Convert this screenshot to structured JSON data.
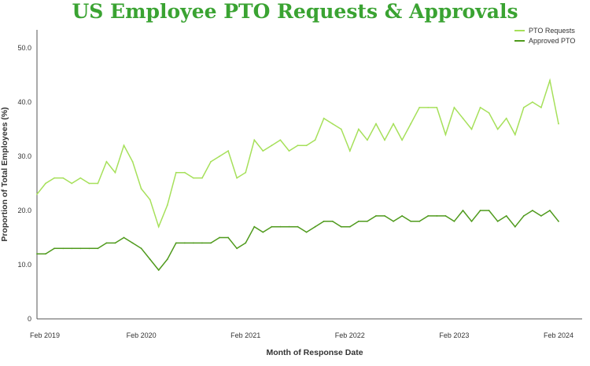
{
  "chart_data": {
    "type": "line",
    "title": "US Employee PTO Requests & Approvals",
    "xlabel": "Month of Response Date",
    "ylabel": "Proportion of Total Employees (%)",
    "ylim": [
      0,
      50
    ],
    "yticks": [
      "0",
      "10.0",
      "20.0",
      "30.0",
      "40.0",
      "50.0"
    ],
    "xticks": [
      {
        "label": "Feb 2019",
        "index": 0
      },
      {
        "label": "Feb 2020",
        "index": 12
      },
      {
        "label": "Feb 2021",
        "index": 24
      },
      {
        "label": "Feb 2022",
        "index": 36
      },
      {
        "label": "Feb 2023",
        "index": 48
      },
      {
        "label": "Feb 2024",
        "index": 60
      }
    ],
    "x_start": "Feb 2019",
    "x_end": "Feb 2024",
    "legend_position": "top-right",
    "grid": false,
    "series": [
      {
        "name": "PTO Requests",
        "color": "#a6e05a",
        "values": [
          23,
          25,
          26,
          26,
          25,
          26,
          25,
          25,
          29,
          27,
          32,
          29,
          24,
          22,
          17,
          21,
          27,
          27,
          26,
          26,
          29,
          30,
          31,
          26,
          27,
          33,
          31,
          32,
          33,
          31,
          32,
          32,
          33,
          37,
          36,
          35,
          31,
          35,
          33,
          36,
          33,
          36,
          33,
          36,
          39,
          39,
          39,
          34,
          39,
          37,
          35,
          39,
          38,
          35,
          37,
          34,
          39,
          40,
          39,
          44,
          36
        ]
      },
      {
        "name": "Approved PTO",
        "color": "#4f9a1c",
        "values": [
          12,
          12,
          13,
          13,
          13,
          13,
          13,
          13,
          14,
          14,
          15,
          14,
          13,
          11,
          9,
          11,
          14,
          14,
          14,
          14,
          14,
          15,
          15,
          13,
          14,
          17,
          16,
          17,
          17,
          17,
          17,
          16,
          17,
          18,
          18,
          17,
          17,
          18,
          18,
          19,
          19,
          18,
          19,
          18,
          18,
          19,
          19,
          19,
          18,
          20,
          18,
          20,
          20,
          18,
          19,
          17,
          19,
          20,
          19,
          20,
          18
        ]
      }
    ]
  }
}
